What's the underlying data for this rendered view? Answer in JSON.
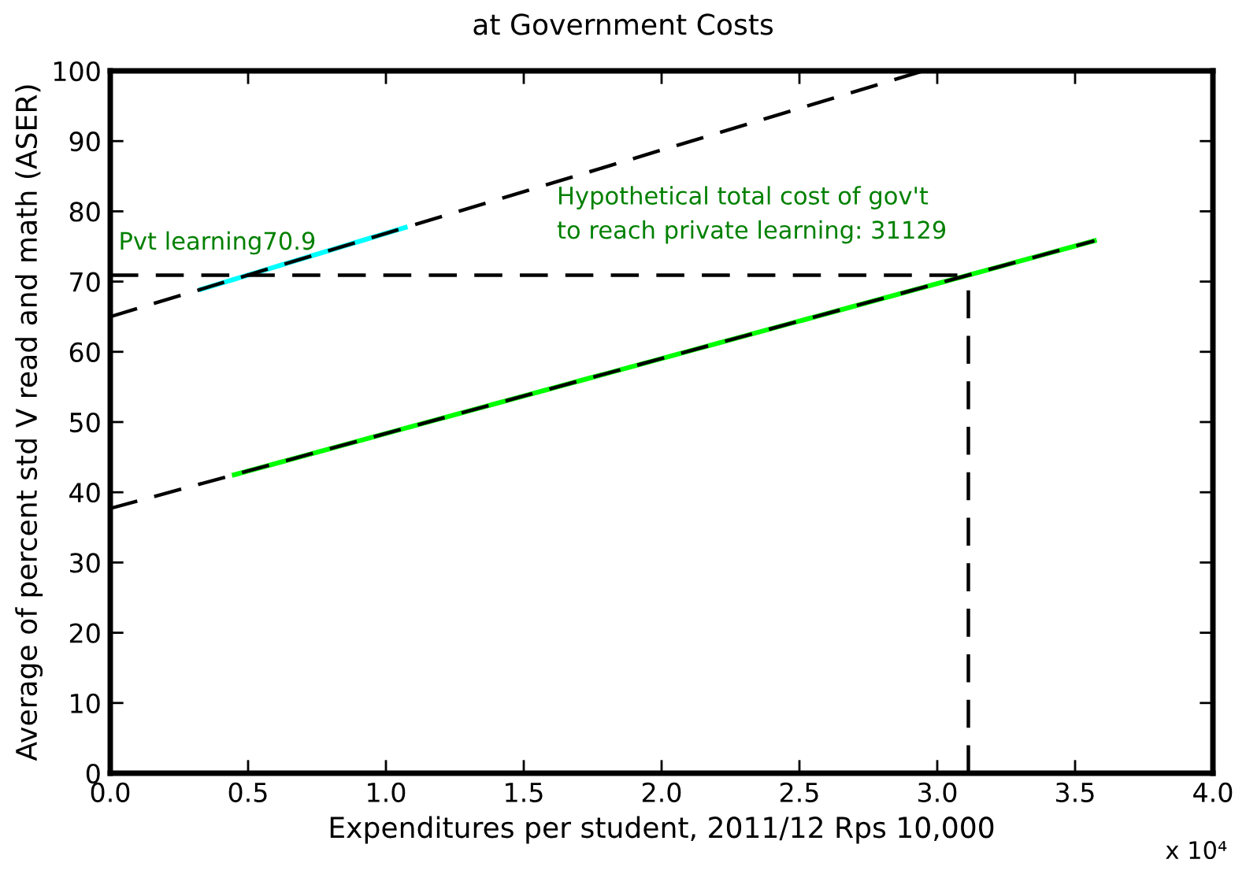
{
  "chart_data": {
    "type": "line",
    "title": "at Government Costs",
    "xlabel": "Expenditures per student, 2011/12 Rps 10,000",
    "ylabel": "Average of percent std V read and math (ASER)",
    "series": [
      {
        "color": "#00ffff",
        "x": [
          0.33,
          1.07
        ],
        "values": [
          68.9,
          77.7
        ],
        "line_style": "solid"
      },
      {
        "color": "#00ff00",
        "x": [
          0.45,
          3.57
        ],
        "values": [
          42.5,
          75.8
        ],
        "line_style": "solid"
      },
      {
        "color": "#000000",
        "x": [
          0,
          2.95
        ],
        "values": [
          65,
          100
        ],
        "line_style": "dashed"
      },
      {
        "color": "#000000",
        "x": [
          0,
          3.57
        ],
        "values": [
          37.7,
          75.8
        ],
        "line_style": "dashed"
      },
      {
        "color": "#000000",
        "x": [
          0,
          3.1129
        ],
        "values": [
          70.9,
          70.9
        ],
        "line_style": "dashed"
      },
      {
        "color": "#000000",
        "x": [
          3.1129,
          3.1129
        ],
        "values": [
          0,
          70.9
        ],
        "line_style": "dashed"
      }
    ],
    "annotations": [
      "Pvt learning70.9",
      "Hypothetical total cost of gov't\nto reach private learning: 31129",
      "x 10⁴"
    ],
    "xlim": [
      0,
      4
    ],
    "xticks": [
      {
        "value": 0,
        "label": "0.0"
      },
      {
        "value": 0.5,
        "label": "0.5"
      },
      {
        "value": 1,
        "label": "1.0"
      },
      {
        "value": 1.5,
        "label": "1.5"
      },
      {
        "value": 2,
        "label": "2.0"
      },
      {
        "value": 2.5,
        "label": "2.5"
      },
      {
        "value": 3,
        "label": "3.0"
      },
      {
        "value": 3.5,
        "label": "3.5"
      },
      {
        "value": 4,
        "label": "4.0"
      }
    ],
    "ylim": [
      0,
      100
    ],
    "yticks": [
      0,
      10,
      20,
      30,
      40,
      50,
      60,
      70,
      80,
      90,
      100
    ],
    "grid": false,
    "legend": false,
    "marker": "none"
  }
}
